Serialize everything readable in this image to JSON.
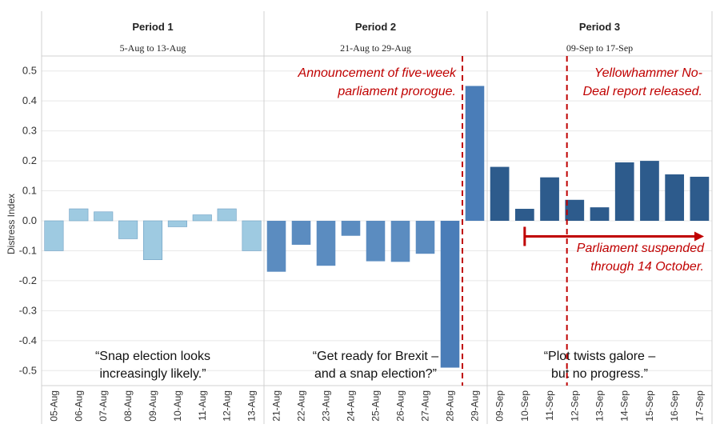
{
  "chart_data": {
    "type": "bar",
    "ylabel": "Distress Index",
    "ylim": [
      -0.55,
      0.55
    ],
    "yticks": [
      0.5,
      0.4,
      0.3,
      0.2,
      0.1,
      0.0,
      -0.1,
      -0.2,
      -0.3,
      -0.4,
      -0.5
    ],
    "ytick_labels": [
      "0.5",
      "0.4",
      "0.3",
      "0.2",
      "0.1",
      "0.0",
      "-0.1",
      "-0.2",
      "-0.3",
      "-0.4",
      "-0.5"
    ],
    "colors": {
      "period1": "#9ecae1",
      "period2": "#5b8cc0",
      "period2_highlight": "#4a7db8",
      "period3": "#2d5b8c",
      "annotation": "#c00000",
      "grid": "#e8e8e8",
      "divider": "#d0d0d0"
    },
    "panels": [
      {
        "title": "Period 1",
        "range": "5-Aug to 13-Aug",
        "categories": [
          "05-Aug",
          "06-Aug",
          "07-Aug",
          "08-Aug",
          "09-Aug",
          "10-Aug",
          "11-Aug",
          "12-Aug",
          "13-Aug"
        ],
        "values": [
          -0.1,
          0.04,
          0.03,
          -0.06,
          -0.13,
          -0.02,
          0.02,
          0.04,
          -0.1
        ],
        "quote_lines": [
          "“Snap election looks",
          "increasingly likely.”"
        ]
      },
      {
        "title": "Period 2",
        "range": "21-Aug to 29-Aug",
        "categories": [
          "21-Aug",
          "22-Aug",
          "23-Aug",
          "24-Aug",
          "25-Aug",
          "26-Aug",
          "27-Aug",
          "28-Aug",
          "29-Aug"
        ],
        "values": [
          -0.17,
          -0.08,
          -0.15,
          -0.05,
          -0.135,
          -0.137,
          -0.11,
          -0.49,
          0.45
        ],
        "quote_lines": [
          "“Get ready for Brexit –",
          "and a snap election?”"
        ],
        "annotation_lines": [
          "Announcement of five-week",
          "parliament prorogue."
        ]
      },
      {
        "title": "Period 3",
        "range": "09-Sep to 17-Sep",
        "categories": [
          "09-Sep",
          "10-Sep",
          "11-Sep",
          "12-Sep",
          "13-Sep",
          "14-Sep",
          "15-Sep",
          "16-Sep",
          "17-Sep"
        ],
        "values": [
          0.18,
          0.04,
          0.145,
          0.07,
          0.045,
          0.195,
          0.2,
          0.155,
          0.147
        ],
        "quote_lines": [
          "“Plot twists galore –",
          "but no progress.”"
        ],
        "annotation_lines": [
          "Yellowhammer No-",
          "Deal report released."
        ],
        "arrow_label_lines": [
          "Parliament suspended",
          "through 14 October."
        ]
      }
    ]
  }
}
